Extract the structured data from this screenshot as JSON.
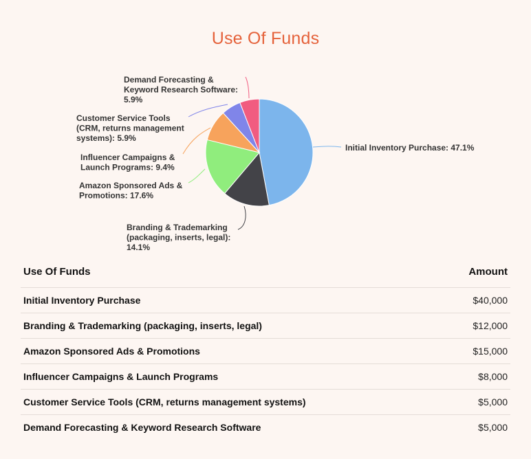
{
  "page": {
    "title": "Use Of Funds"
  },
  "table": {
    "header_name": "Use Of Funds",
    "header_amount": "Amount",
    "rows": [
      {
        "name": "Initial Inventory Purchase",
        "amount": "$40,000"
      },
      {
        "name": "Branding & Trademarking (packaging, inserts, legal)",
        "amount": "$12,000"
      },
      {
        "name": "Amazon Sponsored Ads & Promotions",
        "amount": "$15,000"
      },
      {
        "name": "Influencer Campaigns & Launch Programs",
        "amount": "$8,000"
      },
      {
        "name": "Customer Service Tools (CRM, returns management systems)",
        "amount": "$5,000"
      },
      {
        "name": "Demand Forecasting & Keyword Research Software",
        "amount": "$5,000"
      }
    ]
  },
  "chart_data": {
    "type": "pie",
    "title": "Use Of Funds",
    "slices": [
      {
        "label": "Initial Inventory Purchase",
        "value": 40000,
        "percent": 47.1,
        "color": "#7cb5ec",
        "label_lines": [
          "Initial Inventory Purchase: 47.1%"
        ]
      },
      {
        "label": "Branding & Trademarking (packaging, inserts, legal)",
        "value": 12000,
        "percent": 14.1,
        "color": "#434348",
        "label_lines": [
          "Branding & Trademarking",
          "(packaging, inserts, legal):",
          "14.1%"
        ]
      },
      {
        "label": "Amazon Sponsored Ads & Promotions",
        "value": 15000,
        "percent": 17.6,
        "color": "#90ed7d",
        "label_lines": [
          "Amazon Sponsored Ads &",
          "Promotions: 17.6%"
        ]
      },
      {
        "label": "Influencer Campaigns & Launch Programs",
        "value": 8000,
        "percent": 9.4,
        "color": "#f7a35c",
        "label_lines": [
          "Influencer Campaigns &",
          "Launch Programs: 9.4%"
        ]
      },
      {
        "label": "Customer Service Tools (CRM, returns management systems)",
        "value": 5000,
        "percent": 5.9,
        "color": "#8085e9",
        "label_lines": [
          "Customer Service Tools",
          "(CRM, returns management",
          "systems): 5.9%"
        ]
      },
      {
        "label": "Demand Forecasting & Keyword Research Software",
        "value": 5000,
        "percent": 5.9,
        "color": "#f15c80",
        "label_lines": [
          "Demand Forecasting &",
          "Keyword Research Software:",
          "5.9%"
        ]
      }
    ]
  }
}
